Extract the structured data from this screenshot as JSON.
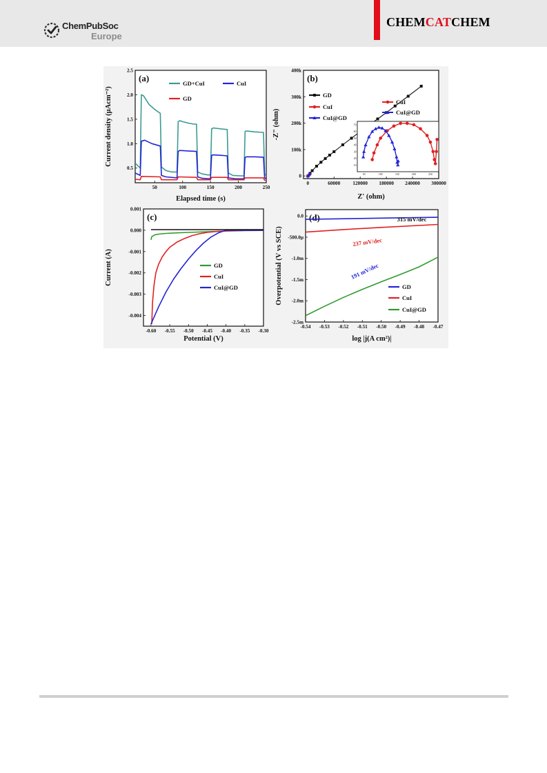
{
  "header": {
    "publisher": "ChemPubSoc",
    "publisher_sub": "Europe",
    "journal_part1": "CHEM",
    "journal_part2": "CAT",
    "journal_part3": "CHEM",
    "accent_color": "#e10d1b",
    "band_color": "#e8e8e9"
  },
  "chart_data": [
    {
      "panel": "(a)",
      "type": "line",
      "xlabel": "Elapsed time (s)",
      "ylabel": "Current density (µAcm⁻²)",
      "xlim": [
        15,
        250
      ],
      "ylim": [
        0.2,
        2.5
      ],
      "xticks": [
        "50",
        "100",
        "150",
        "200",
        "250"
      ],
      "yticks": [
        "0.5",
        "1.0",
        "1.5",
        "2.0",
        "2.5"
      ],
      "legend": [
        "GD+CuI",
        "CuI",
        "GD"
      ],
      "series": [
        {
          "name": "GD+CuI",
          "color": "#3a9a93",
          "x": [
            15,
            24,
            26,
            30,
            40,
            50,
            60,
            62,
            70,
            80,
            90,
            92,
            95,
            100,
            110,
            120,
            125,
            127,
            135,
            145,
            150,
            152,
            155,
            170,
            180,
            182,
            190,
            205,
            210,
            212,
            215,
            230,
            245,
            247,
            250
          ],
          "y": [
            0.6,
            0.5,
            2.0,
            1.98,
            1.8,
            1.7,
            1.62,
            0.52,
            0.45,
            0.42,
            0.42,
            1.45,
            1.47,
            1.45,
            1.42,
            1.4,
            1.4,
            0.42,
            0.38,
            0.36,
            0.36,
            1.3,
            1.32,
            1.3,
            1.29,
            0.4,
            0.35,
            0.34,
            0.34,
            1.25,
            1.26,
            1.24,
            1.23,
            0.38,
            0.34
          ]
        },
        {
          "name": "CuI",
          "color": "#2323d6",
          "x": [
            15,
            24,
            26,
            32,
            45,
            60,
            62,
            70,
            90,
            92,
            95,
            110,
            125,
            127,
            135,
            150,
            152,
            155,
            170,
            180,
            182,
            195,
            210,
            212,
            215,
            230,
            245,
            247,
            250
          ],
          "y": [
            0.4,
            0.35,
            1.05,
            1.07,
            1.0,
            0.95,
            0.35,
            0.32,
            0.3,
            0.84,
            0.86,
            0.85,
            0.84,
            0.32,
            0.29,
            0.28,
            0.76,
            0.77,
            0.76,
            0.75,
            0.3,
            0.28,
            0.28,
            0.72,
            0.73,
            0.73,
            0.72,
            0.3,
            0.28
          ]
        },
        {
          "name": "GD",
          "color": "#e02020",
          "x": [
            15,
            24,
            26,
            60,
            62,
            90,
            92,
            125,
            127,
            150,
            152,
            180,
            182,
            210,
            212,
            245,
            247,
            250
          ],
          "y": [
            0.27,
            0.26,
            0.33,
            0.32,
            0.26,
            0.26,
            0.32,
            0.31,
            0.26,
            0.26,
            0.31,
            0.31,
            0.26,
            0.26,
            0.3,
            0.3,
            0.25,
            0.25
          ]
        }
      ]
    },
    {
      "panel": "(b)",
      "type": "scatter",
      "xlabel": "Z' (ohm)",
      "ylabel": "-Z\" (ohm)",
      "xlim": [
        -10000,
        300000
      ],
      "ylim": [
        -10000,
        400000
      ],
      "xticks": [
        "0",
        "60000",
        "120000",
        "180000",
        "240000",
        "300000"
      ],
      "yticks": [
        "0",
        "100k",
        "200k",
        "300k",
        "400k"
      ],
      "legend": [
        "GD",
        "CuI",
        "CuI@GD"
      ],
      "series": [
        {
          "name": "GD",
          "color": "#111111",
          "x": [
            0,
            5000,
            10000,
            20000,
            30000,
            40000,
            50000,
            60000,
            80000,
            100000,
            120000,
            140000,
            160000,
            180000,
            200000,
            230000,
            260000
          ],
          "y": [
            0,
            10000,
            20000,
            37000,
            52000,
            66000,
            79000,
            92000,
            118000,
            143000,
            168000,
            192000,
            216000,
            240000,
            265000,
            302000,
            340000
          ]
        },
        {
          "name": "CuI",
          "color": "#e02020",
          "x": [
            0,
            2000,
            4000
          ],
          "y": [
            0,
            3000,
            6000
          ]
        },
        {
          "name": "CuI@GD",
          "color": "#2323d6",
          "x": [
            0,
            2000,
            4000
          ],
          "y": [
            0,
            4000,
            8000
          ]
        }
      ],
      "inset": {
        "xlim": [
          30,
          275
        ],
        "ylim": [
          0,
          75
        ],
        "xticks": [
          "50",
          "100",
          "150",
          "200",
          "250"
        ],
        "yticks": [
          "10",
          "20",
          "30",
          "40",
          "50",
          "60",
          "70"
        ],
        "legend": [
          "CuI",
          "CuI@GD"
        ],
        "series": [
          {
            "name": "CuI",
            "color": "#e02020",
            "x": [
              75,
              80,
              90,
              100,
              120,
              140,
              160,
              180,
              200,
              220,
              240,
              250,
              258,
              262,
              265,
              268,
              270
            ],
            "y": [
              18,
              28,
              40,
              50,
              61,
              68,
              72,
              72,
              70,
              64,
              54,
              44,
              30,
              18,
              12,
              30,
              48
            ]
          },
          {
            "name": "CuI@GD",
            "color": "#2323d6",
            "x": [
              48,
              50,
              55,
              65,
              75,
              85,
              95,
              105,
              115,
              125,
              135,
              142,
              148,
              150,
              152,
              153
            ],
            "y": [
              22,
              30,
              40,
              52,
              60,
              64,
              66,
              65,
              61,
              54,
              44,
              34,
              22,
              14,
              10,
              16
            ]
          }
        ]
      }
    },
    {
      "panel": "(c)",
      "type": "line",
      "xlabel": "Potential (V)",
      "ylabel": "Current (A)",
      "xlim": [
        -0.62,
        -0.3
      ],
      "ylim": [
        -0.0045,
        0.001
      ],
      "xticks": [
        "-0.60",
        "-0.55",
        "-0.50",
        "-0.45",
        "-0.40",
        "-0.35",
        "-0.30"
      ],
      "yticks": [
        "-0.004",
        "-0.003",
        "-0.002",
        "-0.001",
        "0.000",
        "0.001"
      ],
      "legend": [
        "GD",
        "CuI",
        "CuI@GD"
      ],
      "series": [
        {
          "name": "GD",
          "color": "#2e9a2e",
          "x": [
            -0.6,
            -0.598,
            -0.59,
            -0.58,
            -0.56,
            -0.54,
            -0.5,
            -0.45,
            -0.4,
            -0.35,
            -0.3
          ],
          "y": [
            -0.00045,
            -0.0003,
            -0.00022,
            -0.00018,
            -0.00015,
            -0.00013,
            -0.0001,
            -7e-05,
            -4e-05,
            -2e-05,
            -1e-05
          ]
        },
        {
          "name": "CuI",
          "color": "#e02020",
          "x": [
            -0.598,
            -0.596,
            -0.592,
            -0.587,
            -0.58,
            -0.57,
            -0.56,
            -0.55,
            -0.53,
            -0.51,
            -0.49,
            -0.47,
            -0.45,
            -0.42,
            -0.4,
            -0.35,
            -0.3
          ],
          "y": [
            -0.0044,
            -0.0034,
            -0.0026,
            -0.002,
            -0.0016,
            -0.00125,
            -0.001,
            -0.0008,
            -0.00055,
            -0.00038,
            -0.00025,
            -0.00016,
            -0.0001,
            -5e-05,
            -3e-05,
            -1e-05,
            0.0
          ]
        },
        {
          "name": "CuI@GD",
          "color": "#2323d6",
          "x": [
            -0.6,
            -0.58,
            -0.56,
            -0.54,
            -0.52,
            -0.5,
            -0.48,
            -0.46,
            -0.44,
            -0.42,
            -0.4,
            -0.35,
            -0.3
          ],
          "y": [
            -0.0044,
            -0.0036,
            -0.0029,
            -0.0023,
            -0.0018,
            -0.00135,
            -0.00095,
            -0.0006,
            -0.00032,
            -0.00012,
            0.0,
            0.0,
            0.0
          ]
        },
        {
          "name": "",
          "color": "#111111",
          "x": [
            -0.6,
            -0.3
          ],
          "y": [
            3e-05,
            3e-05
          ]
        }
      ]
    },
    {
      "panel": "(d)",
      "type": "line",
      "xlabel": "log |j(A cm²)|",
      "ylabel": "Overpotential (V vs SCE)",
      "xlim": [
        -0.54,
        -0.47
      ],
      "ylim": [
        -2.5,
        0.15
      ],
      "xticks": [
        "-0.54",
        "-0.53",
        "-0.52",
        "-0.51",
        "-0.50",
        "-0.49",
        "-0.48",
        "-0.47"
      ],
      "yticks": [
        "-2.5m",
        "-2.0m",
        "-1.5m",
        "-1.0m",
        "-500.0µ",
        "0.0"
      ],
      "legend": [
        "GD",
        "CuI",
        "CuI@GD"
      ],
      "annotations": [
        "315 mV/dec",
        "237 mV/dec",
        "191 mV/dec"
      ],
      "series": [
        {
          "name": "GD",
          "color": "#2323d6",
          "x": [
            -0.54,
            -0.5,
            -0.47
          ],
          "y": [
            -0.08,
            -0.05,
            -0.03
          ]
        },
        {
          "name": "CuI",
          "color": "#e02020",
          "x": [
            -0.54,
            -0.52,
            -0.5,
            -0.47
          ],
          "y": [
            -0.38,
            -0.32,
            -0.27,
            -0.2
          ]
        },
        {
          "name": "CuI@GD",
          "color": "#2e9a2e",
          "x": [
            -0.54,
            -0.53,
            -0.52,
            -0.51,
            -0.5,
            -0.49,
            -0.48,
            -0.47
          ],
          "y": [
            -2.35,
            -2.13,
            -1.92,
            -1.73,
            -1.55,
            -1.38,
            -1.2,
            -0.97
          ]
        }
      ]
    }
  ]
}
